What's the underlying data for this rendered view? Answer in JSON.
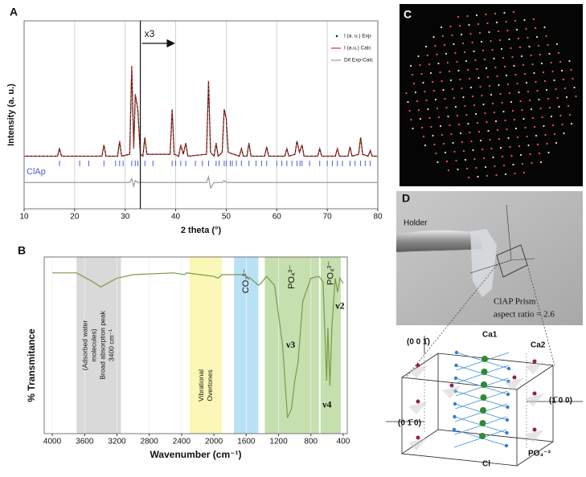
{
  "panel_labels": [
    "A",
    "B",
    "C",
    "D"
  ],
  "chart_data": [
    {
      "type": "line",
      "x_label": "2 theta (°)",
      "y_label": "Intensity (a. u.)",
      "xlim": [
        10,
        80
      ],
      "xticks": [
        10,
        20,
        30,
        40,
        50,
        60,
        70,
        80
      ],
      "ylim": [
        0,
        100
      ],
      "grid": true,
      "legend": "upper right",
      "x": [
        10,
        16.6,
        17,
        17.4,
        25.4,
        25.8,
        26.2,
        28.5,
        28.9,
        29.3,
        30.9,
        31.3,
        31.7,
        32,
        32.5,
        33,
        33.5,
        33.9,
        34.3,
        38.9,
        39.3,
        39.7,
        40.6,
        41,
        41.5,
        42,
        42.4,
        46.1,
        46.5,
        46.9,
        47.6,
        48,
        48.4,
        49.2,
        49.6,
        50,
        50.4,
        52.6,
        53,
        53.4,
        54.1,
        54.5,
        54.9,
        57.6,
        58,
        58.4,
        61.6,
        62,
        62.4,
        63.6,
        64,
        64.5,
        65,
        65.4,
        68.1,
        68.5,
        68.9,
        71.6,
        72,
        72.4,
        74.1,
        74.5,
        74.9,
        76.2,
        76.6,
        77,
        78.1,
        78.5,
        78.9,
        80
      ],
      "series": [
        {
          "name": "I (a. u.) Exp",
          "color": "#111111",
          "values": [
            28,
            28,
            32,
            28,
            28,
            34,
            28,
            28,
            36,
            28,
            29,
            76,
            32,
            61,
            53,
            29,
            28,
            38,
            29,
            29,
            53,
            29,
            28,
            34,
            29,
            35,
            28,
            29,
            68,
            30,
            28,
            35,
            28,
            30,
            53,
            48,
            30,
            28,
            32,
            28,
            28,
            35,
            28,
            28,
            33,
            28,
            28,
            32,
            28,
            29,
            36,
            30,
            34,
            28,
            28,
            32,
            28,
            28,
            32,
            28,
            28,
            33,
            28,
            29,
            38,
            29,
            28,
            31,
            28,
            28
          ]
        },
        {
          "name": "I (a.u.) Calc",
          "color": "#e03020",
          "values": [
            28,
            28,
            32,
            28,
            28,
            34,
            28,
            28,
            36,
            28,
            29,
            76,
            32,
            61,
            53,
            29,
            28,
            38,
            29,
            29,
            53,
            29,
            28,
            34,
            29,
            35,
            28,
            29,
            68,
            30,
            28,
            35,
            28,
            30,
            53,
            48,
            30,
            28,
            32,
            28,
            28,
            35,
            28,
            28,
            33,
            28,
            28,
            32,
            28,
            29,
            36,
            30,
            34,
            28,
            28,
            32,
            28,
            28,
            32,
            28,
            28,
            33,
            28,
            29,
            38,
            29,
            28,
            31,
            28,
            28
          ]
        },
        {
          "name": "Dif Exp-Calc",
          "color": "#9a9a9a",
          "values": [
            14,
            14,
            14,
            14,
            14,
            14,
            14,
            14,
            14,
            14,
            14,
            16,
            12,
            15,
            14,
            14,
            14,
            14,
            14,
            14,
            14,
            14,
            14,
            14,
            14,
            14,
            14,
            14,
            17,
            11,
            14,
            14,
            14,
            14,
            15,
            14,
            14,
            14,
            14,
            14,
            14,
            14,
            14,
            14,
            14,
            14,
            14,
            14,
            14,
            14,
            14,
            14,
            14,
            14,
            14,
            14,
            14,
            14,
            14,
            14,
            14,
            14,
            14,
            14,
            14,
            14,
            14,
            14,
            14,
            14
          ]
        }
      ],
      "reflections": {
        "name": "ClAp",
        "color": "#4b5fd6",
        "x": [
          17,
          21,
          22.8,
          25.8,
          28.1,
          28.9,
          29.6,
          31.3,
          32,
          32.5,
          33.9,
          35.5,
          39.3,
          40,
          41,
          42,
          43.9,
          45.3,
          46.5,
          48,
          48.6,
          49.6,
          50,
          50.8,
          51.2,
          52,
          53,
          54.5,
          55.9,
          57,
          58,
          60,
          61,
          62,
          63,
          64,
          64.6,
          65,
          66.5,
          68.5,
          70,
          71,
          72,
          73,
          74.5,
          75.5,
          76.6,
          77.5,
          78.5
        ]
      },
      "annotation": {
        "text": "x3",
        "x": 33
      }
    },
    {
      "type": "line",
      "x_label": "Wavenumber (cm⁻¹)",
      "y_label": "% Transmitance",
      "xlim": [
        4100,
        350
      ],
      "xticks": [
        4000,
        3600,
        3200,
        2800,
        2400,
        2000,
        1600,
        1200,
        800,
        400
      ],
      "ylim": [
        0,
        100
      ],
      "x": [
        4000,
        3700,
        3500,
        3400,
        3200,
        3000,
        2500,
        2360,
        2340,
        2000,
        1950,
        1900,
        1650,
        1550,
        1450,
        1420,
        1350,
        1250,
        1150,
        1090,
        1040,
        1000,
        960,
        900,
        800,
        700,
        650,
        605,
        590,
        565,
        540,
        500,
        470,
        440,
        400
      ],
      "series": [
        {
          "color": "#7a9a4a",
          "values": [
            91,
            91,
            86,
            83,
            88,
            90,
            91,
            90,
            91,
            89,
            88,
            90,
            90,
            88,
            84,
            85,
            89,
            84,
            50,
            9,
            14,
            30,
            40,
            75,
            88,
            89,
            86,
            30,
            60,
            27,
            60,
            88,
            80,
            88,
            85
          ]
        }
      ],
      "regions": [
        {
          "from": 3700,
          "to": 3150,
          "color": "#d9d9d9",
          "label": [
            "(Adsorbed water",
            "molecules)",
            "Broad absorption peak",
            "3400 cm⁻¹"
          ]
        },
        {
          "from": 2300,
          "to": 1900,
          "color": "#fbf7b5",
          "label": [
            "Vibrational",
            "Overtones"
          ]
        },
        {
          "from": 1750,
          "to": 1450,
          "color": "#b9e1f5",
          "label": [
            "CO₃²⁻"
          ]
        },
        {
          "from": 1370,
          "to": 700,
          "color": "#c5dfae",
          "label": [
            "PO₄³⁻"
          ]
        },
        {
          "from": 680,
          "to": 430,
          "color": "#c5dfae",
          "label": [
            "PO₄³⁻"
          ]
        }
      ],
      "annotations": [
        {
          "text": "ν3",
          "x": 1050,
          "y": 50
        },
        {
          "text": "ν4",
          "x": 600,
          "y": 16
        },
        {
          "text": "ν2",
          "x": 440,
          "y": 72
        }
      ]
    }
  ],
  "photo": {
    "holder": "Holder",
    "prism": "ClAP Prism",
    "aspect": "aspect ratio = 2.6"
  },
  "structure": {
    "ca1": "Ca1",
    "ca2": "Ca2",
    "face_001": "(0 0 1̄)",
    "face_010": "(0 1̄ 0)",
    "face_100": "(1̄ 0 0)",
    "po4": "PO₄⁻³",
    "cl": "Cl"
  }
}
